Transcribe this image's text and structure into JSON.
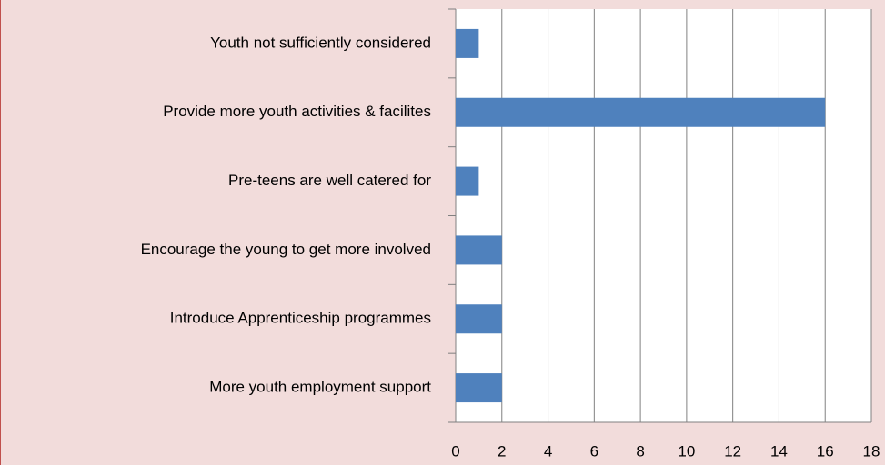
{
  "chart_data": {
    "type": "bar",
    "orientation": "horizontal",
    "categories": [
      "Youth not sufficiently considered",
      "Provide more youth activities & facilites",
      "Pre-teens are well catered for",
      "Encourage the young to get more involved",
      "Introduce Apprenticeship programmes",
      "More youth employment support"
    ],
    "values": [
      1,
      16,
      1,
      2,
      2,
      2
    ],
    "color": "#4f81bd",
    "xlim": [
      0,
      18
    ],
    "xticks": [
      0,
      2,
      4,
      6,
      8,
      10,
      12,
      14,
      16,
      18
    ],
    "grid": true
  }
}
